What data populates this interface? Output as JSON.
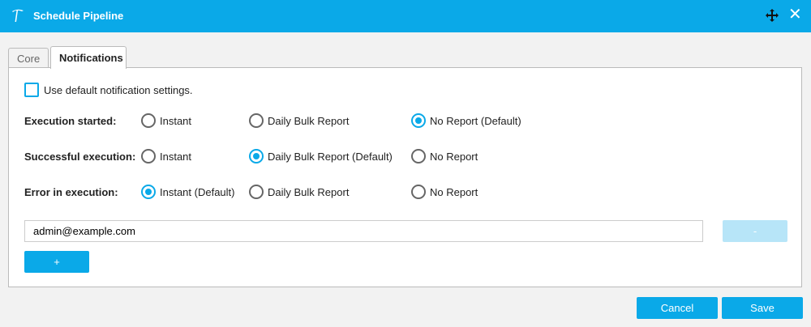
{
  "window": {
    "title": "Schedule Pipeline",
    "close": "✕"
  },
  "tabs": [
    {
      "label": "Core"
    },
    {
      "label": "Notifications"
    }
  ],
  "notifications": {
    "use_default_label": "Use default notification settings.",
    "use_default_checked": false,
    "rows": [
      {
        "label": "Execution started:",
        "options": [
          "Instant",
          "Daily Bulk Report",
          "No Report (Default)"
        ],
        "selected": 2
      },
      {
        "label": "Successful execution:",
        "options": [
          "Instant",
          "Daily Bulk Report (Default)",
          "No Report"
        ],
        "selected": 1
      },
      {
        "label": "Error in execution:",
        "options": [
          "Instant (Default)",
          "Daily Bulk Report",
          "No Report"
        ],
        "selected": 0
      }
    ],
    "email_value": "admin@example.com",
    "remove_label": "-",
    "add_label": "+"
  },
  "footer": {
    "cancel": "Cancel",
    "save": "Save"
  },
  "colors": {
    "accent": "#0aa9e8"
  }
}
